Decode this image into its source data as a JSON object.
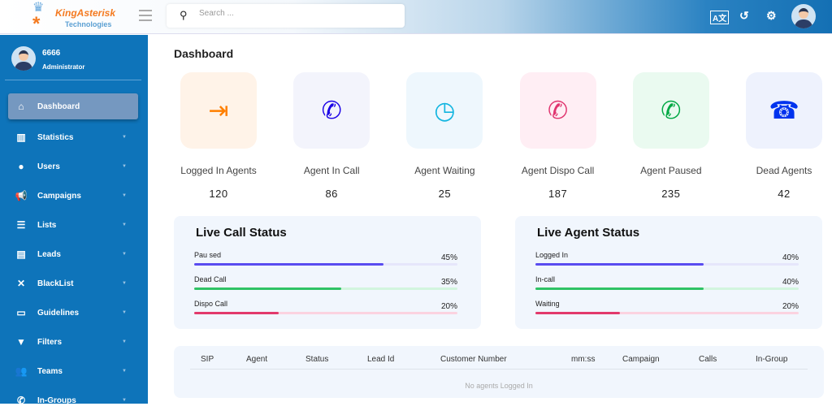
{
  "brand": {
    "name": "KingAsterisk",
    "sub": "Technologies"
  },
  "header": {
    "search_placeholder": "Search ...",
    "icons": [
      "translate-icon",
      "history-icon",
      "settings-icon",
      "user-avatar"
    ]
  },
  "user": {
    "id": "6666",
    "role": "Administrator"
  },
  "sidebar": {
    "items": [
      {
        "label": "Dashboard",
        "icon": "home-icon",
        "active": true
      },
      {
        "label": "Statistics",
        "icon": "chart-icon"
      },
      {
        "label": "Users",
        "icon": "user-icon"
      },
      {
        "label": "Campaigns",
        "icon": "megaphone-icon"
      },
      {
        "label": "Lists",
        "icon": "list-icon"
      },
      {
        "label": "Leads",
        "icon": "file-icon"
      },
      {
        "label": "BlackList",
        "icon": "phone-slash-icon"
      },
      {
        "label": "Guidelines",
        "icon": "card-icon"
      },
      {
        "label": "Filters",
        "icon": "filter-icon"
      },
      {
        "label": "Teams",
        "icon": "team-icon"
      },
      {
        "label": "In-Groups",
        "icon": "phone-icon"
      }
    ]
  },
  "page": {
    "title": "Dashboard"
  },
  "stats": [
    {
      "label": "Logged In Agents",
      "value": "120",
      "icon": "door-exit-icon",
      "color": "#ff7f00",
      "bg": "#fff3e8"
    },
    {
      "label": "Agent In Call",
      "value": "86",
      "icon": "incoming-call-icon",
      "color": "#1a00e6",
      "bg": "#f3f4fc"
    },
    {
      "label": "Agent Waiting",
      "value": "25",
      "icon": "clock-icon",
      "color": "#12b5e0",
      "bg": "#eef7fd"
    },
    {
      "label": "Agent Dispo Call",
      "value": "187",
      "icon": "call-end-icon",
      "color": "#e0356f",
      "bg": "#ffeef4"
    },
    {
      "label": "Agent Paused",
      "value": "235",
      "icon": "call-paused-icon",
      "color": "#00a843",
      "bg": "#eafaf0"
    },
    {
      "label": "Dead Agents",
      "value": "42",
      "icon": "hangup-icon",
      "color": "#0033ee",
      "bg": "#eef2fd"
    }
  ],
  "live_call": {
    "title": "Live Call Status",
    "rows": [
      {
        "label": "Pau sed",
        "percent": 45,
        "display": "45%",
        "color": "#5a4cf0",
        "track": "#e6e6fb"
      },
      {
        "label": "Dead  Call",
        "percent": 35,
        "display": "35%",
        "color": "#2fc265",
        "track": "#d2f5de"
      },
      {
        "label": "Dispo Call",
        "percent": 20,
        "display": "20%",
        "color": "#e23a6c",
        "track": "#fbd3e0"
      }
    ]
  },
  "live_agent": {
    "title": "Live Agent Status",
    "rows": [
      {
        "label": "Logged In",
        "percent": 40,
        "display": "40%",
        "color": "#5a4cf0",
        "track": "#e6e6fb"
      },
      {
        "label": "In-call",
        "percent": 40,
        "display": "40%",
        "color": "#2fc265",
        "track": "#d2f5de"
      },
      {
        "label": "Waiting",
        "percent": 20,
        "display": "20%",
        "color": "#e23a6c",
        "track": "#fbd3e0"
      }
    ]
  },
  "table": {
    "columns": [
      "SIP",
      "Agent",
      "Status",
      "Lead Id",
      "Customer Number",
      "mm:ss",
      "Campaign",
      "Calls",
      "In-Group"
    ],
    "empty": "No agents Logged In"
  }
}
